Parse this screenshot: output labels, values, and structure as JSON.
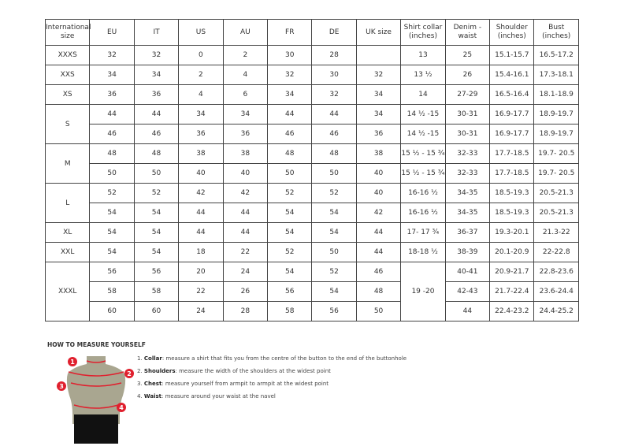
{
  "headers": [
    "International size",
    "EU",
    "IT",
    "US",
    "AU",
    "FR",
    "DE",
    "UK size",
    "Shirt collar (inches)",
    "Denim - waist",
    "Shoulder (inches)",
    "Bust (inches)"
  ],
  "groups": [
    {
      "size": "XXXS",
      "rows": [
        [
          "32",
          "32",
          "0",
          "2",
          "30",
          "28",
          "",
          "13",
          "25",
          "15.1-15.7",
          "16.5-17.2"
        ]
      ]
    },
    {
      "size": "XXS",
      "rows": [
        [
          "34",
          "34",
          "2",
          "4",
          "32",
          "30",
          "32",
          "13 ½",
          "26",
          "15.4-16.1",
          "17.3-18.1"
        ]
      ]
    },
    {
      "size": "XS",
      "rows": [
        [
          "36",
          "36",
          "4",
          "6",
          "34",
          "32",
          "34",
          "14",
          "27-29",
          "16.5-16.4",
          "18.1-18.9"
        ]
      ]
    },
    {
      "size": "S",
      "rows": [
        [
          "44",
          "44",
          "34",
          "34",
          "44",
          "44",
          "34",
          "14 ½ -15",
          "30-31",
          "16.9-17.7",
          "18.9-19.7"
        ],
        [
          "46",
          "46",
          "36",
          "36",
          "46",
          "46",
          "36",
          "14 ½ -15",
          "30-31",
          "16.9-17.7",
          "18.9-19.7"
        ]
      ]
    },
    {
      "size": "M",
      "rows": [
        [
          "48",
          "48",
          "38",
          "38",
          "48",
          "48",
          "38",
          "15 ½ - 15 ¾",
          "32-33",
          "17.7-18.5",
          "19.7- 20.5"
        ],
        [
          "50",
          "50",
          "40",
          "40",
          "50",
          "50",
          "40",
          "15 ½ - 15 ¾",
          "32-33",
          "17.7-18.5",
          "19.7- 20.5"
        ]
      ]
    },
    {
      "size": "L",
      "rows": [
        [
          "52",
          "52",
          "42",
          "42",
          "52",
          "52",
          "40",
          "16-16 ½",
          "34-35",
          "18.5-19.3",
          "20.5-21.3"
        ],
        [
          "54",
          "54",
          "44",
          "44",
          "54",
          "54",
          "42",
          "16-16 ½",
          "34-35",
          "18.5-19.3",
          "20.5-21.3"
        ]
      ]
    },
    {
      "size": "XL",
      "rows": [
        [
          "54",
          "54",
          "44",
          "44",
          "54",
          "54",
          "44",
          "17- 17 ¾",
          "36-37",
          "19.3-20.1",
          "21.3-22"
        ]
      ]
    },
    {
      "size": "XXL",
      "rows": [
        [
          "54",
          "54",
          "18",
          "22",
          "52",
          "50",
          "44",
          "18-18 ½",
          "38-39",
          "20.1-20.9",
          "22-22.8"
        ]
      ]
    },
    {
      "size": "XXXL",
      "shared_collar": "19 -20",
      "rows": [
        [
          "56",
          "56",
          "20",
          "24",
          "54",
          "52",
          "46",
          "40-41",
          "20.9-21.7",
          "22.8-23.6"
        ],
        [
          "58",
          "58",
          "22",
          "26",
          "56",
          "54",
          "48",
          "42-43",
          "21.7-22.4",
          "23.6-24.4"
        ],
        [
          "60",
          "60",
          "24",
          "28",
          "58",
          "56",
          "50",
          "44",
          "22.4-23.2",
          "24.4-25.2"
        ]
      ]
    }
  ],
  "guide": {
    "title": "HOW TO MEASURE YOURSELF",
    "steps": [
      {
        "num": "1.",
        "term": "Collar",
        "text": ": measure a shirt that fits you from the centre of the button to the end of the buttonhole"
      },
      {
        "num": "2.",
        "term": "Shoulders",
        "text": ": measure the width of the shoulders at the widest point"
      },
      {
        "num": "3.",
        "term": "Chest",
        "text": ": measure yourself from armpit to armpit at the widest point"
      },
      {
        "num": "4.",
        "term": "Waist",
        "text": ": measure around your waist at the navel"
      }
    ],
    "markers": [
      "1",
      "2",
      "3",
      "4"
    ],
    "accent": "#e0202e"
  }
}
